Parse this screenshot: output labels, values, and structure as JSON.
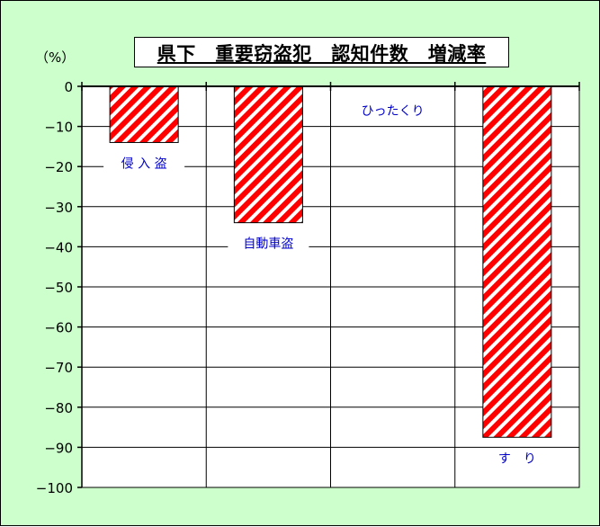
{
  "chart_data": {
    "type": "bar",
    "title": "県下　重要窃盗犯　認知件数　増減率",
    "unit_label": "（%）",
    "categories": [
      "侵 入 盗",
      "自動車盗",
      "ひったくり",
      "す　り"
    ],
    "values": [
      -14,
      -34,
      0,
      -87.5
    ],
    "ylim": [
      -100,
      0
    ],
    "yticks": [
      0,
      -10,
      -20,
      -30,
      -40,
      -50,
      -60,
      -70,
      -80,
      -90,
      -100
    ],
    "grid": true,
    "colors": {
      "background": "#ccffcc",
      "plot": "#ffffff",
      "bar_stripe": "#ff0000",
      "label_text": "#0000cc"
    }
  }
}
